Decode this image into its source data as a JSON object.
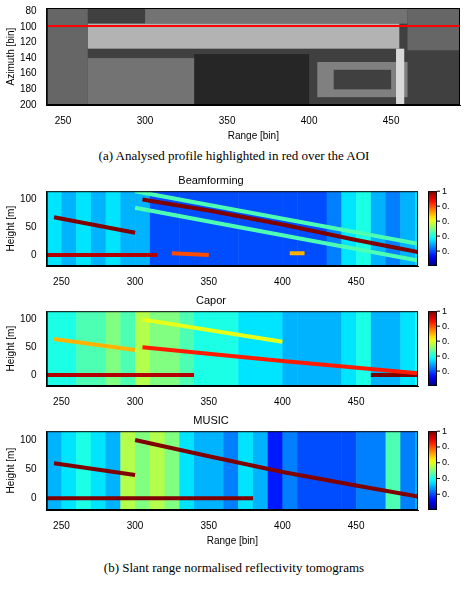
{
  "captions": {
    "a": "(a) Analysed profile highlighted in red over the AOI",
    "b": "(b) Slant range normalised reflectivity tomograms"
  },
  "chart_data": [
    {
      "type": "image",
      "x_label": "Range [bin]",
      "y_label": "Azimuth [bin]",
      "xlim": [
        240,
        492
      ],
      "xticks": [
        250,
        300,
        350,
        400,
        450
      ],
      "ylim": [
        200,
        76
      ],
      "yticks": [
        80,
        100,
        120,
        140,
        160,
        180,
        200
      ],
      "grid": false,
      "background": 0.25,
      "regions": [
        {
          "x": [
            300,
            460
          ],
          "y": [
            76,
            96
          ],
          "value": 0.45
        },
        {
          "x": [
            265,
            455
          ],
          "y": [
            96,
            128
          ],
          "value": 0.7
        },
        {
          "x": [
            240,
            265
          ],
          "y": [
            76,
            200
          ],
          "value": 0.4
        },
        {
          "x": [
            265,
            330
          ],
          "y": [
            140,
            200
          ],
          "value": 0.45
        },
        {
          "x": [
            330,
            400
          ],
          "y": [
            135,
            200
          ],
          "value": 0.15
        },
        {
          "x": [
            405,
            460
          ],
          "y": [
            145,
            190
          ],
          "value": 0.5
        },
        {
          "x": [
            415,
            450
          ],
          "y": [
            155,
            180
          ],
          "value": 0.25
        },
        {
          "x": [
            453,
            458
          ],
          "y": [
            128,
            200
          ],
          "value": 0.85
        },
        {
          "x": [
            460,
            492
          ],
          "y": [
            76,
            130
          ],
          "value": 0.4
        }
      ],
      "profile": {
        "y": 99,
        "color": "#ff0000"
      }
    },
    {
      "type": "heatmap",
      "title": "Beamforming",
      "y_label": "Height [m]",
      "xlim": [
        240,
        492
      ],
      "xticks": [
        250,
        300,
        350,
        400,
        450
      ],
      "ylim": [
        -20,
        115
      ],
      "yticks": [
        0,
        50,
        100
      ],
      "grid": false,
      "background": {
        "x": [
          240,
          250,
          260,
          270,
          280,
          290,
          300,
          310,
          320,
          330,
          340,
          350,
          360,
          370,
          380,
          390,
          400,
          410,
          420,
          430,
          440,
          450,
          460,
          470,
          480,
          490
        ],
        "values": [
          0.35,
          0.3,
          0.35,
          0.3,
          0.35,
          0.3,
          0.3,
          0.2,
          0.2,
          0.2,
          0.2,
          0.2,
          0.2,
          0.2,
          0.2,
          0.2,
          0.2,
          0.2,
          0.2,
          0.25,
          0.35,
          0.4,
          0.3,
          0.25,
          0.3,
          0.35
        ]
      },
      "ridges": [
        {
          "x": [
            300,
            492
          ],
          "y": [
            115,
            20
          ],
          "value": 0.45
        },
        {
          "x": [
            300,
            492
          ],
          "y": [
            85,
            -10
          ],
          "value": 0.45
        },
        {
          "x": [
            305,
            350,
            400,
            450,
            492
          ],
          "y": [
            100,
            80,
            55,
            27,
            5
          ],
          "value": 1
        },
        {
          "x": [
            245,
            300
          ],
          "y": [
            68,
            40
          ],
          "value": 1
        },
        {
          "x": [
            240,
            315
          ],
          "y": [
            0,
            0
          ],
          "value": 0.95
        },
        {
          "x": [
            325,
            350
          ],
          "y": [
            3,
            0
          ],
          "value": 0.8
        },
        {
          "x": [
            405,
            415
          ],
          "y": [
            3,
            3
          ],
          "value": 0.7
        }
      ],
      "colorbar": {
        "range": [
          0,
          1
        ],
        "ticks": [
          1,
          {
            "value": 0.8,
            "label": "0."
          },
          {
            "value": 0.6,
            "label": "0."
          },
          {
            "value": 0.4,
            "label": "0."
          },
          {
            "value": 0.2,
            "label": "0."
          }
        ]
      }
    },
    {
      "type": "heatmap",
      "title": "Capor",
      "y_label": "Height [m]",
      "xlim": [
        240,
        492
      ],
      "xticks": [
        250,
        300,
        350,
        400,
        450
      ],
      "ylim": [
        -20,
        115
      ],
      "yticks": [
        0,
        50,
        100
      ],
      "grid": false,
      "background": {
        "x": [
          240,
          250,
          260,
          270,
          280,
          290,
          300,
          310,
          320,
          330,
          340,
          350,
          360,
          370,
          380,
          390,
          400,
          410,
          420,
          430,
          440,
          450,
          460,
          470,
          480,
          490
        ],
        "values": [
          0.4,
          0.4,
          0.45,
          0.45,
          0.5,
          0.45,
          0.55,
          0.5,
          0.5,
          0.45,
          0.4,
          0.4,
          0.4,
          0.35,
          0.35,
          0.35,
          0.3,
          0.3,
          0.3,
          0.3,
          0.35,
          0.4,
          0.3,
          0.3,
          0.35,
          0.4
        ]
      },
      "ridges": [
        {
          "x": [
            305,
            400
          ],
          "y": [
            100,
            60
          ],
          "value": 0.6
        },
        {
          "x": [
            245,
            300
          ],
          "y": [
            65,
            45
          ],
          "value": 0.7
        },
        {
          "x": [
            305,
            400,
            492
          ],
          "y": [
            50,
            25,
            3
          ],
          "value": 0.85
        },
        {
          "x": [
            240,
            340
          ],
          "y": [
            0,
            0
          ],
          "value": 0.95
        },
        {
          "x": [
            460,
            492
          ],
          "y": [
            0,
            0
          ],
          "value": 1
        }
      ],
      "colorbar": {
        "range": [
          0,
          1
        ],
        "ticks": [
          1,
          {
            "value": 0.8,
            "label": "0."
          },
          {
            "value": 0.6,
            "label": "0."
          },
          {
            "value": 0.4,
            "label": "0."
          },
          {
            "value": 0.2,
            "label": "0."
          }
        ]
      }
    },
    {
      "type": "heatmap",
      "title": "MUSIC",
      "x_label": "Range [bin]",
      "y_label": "Height [m]",
      "xlim": [
        240,
        492
      ],
      "xticks": [
        250,
        300,
        350,
        400,
        450
      ],
      "ylim": [
        -20,
        115
      ],
      "yticks": [
        0,
        50,
        100
      ],
      "grid": false,
      "background": {
        "x": [
          240,
          250,
          260,
          270,
          280,
          290,
          300,
          310,
          320,
          330,
          340,
          350,
          360,
          370,
          380,
          390,
          400,
          410,
          420,
          430,
          440,
          450,
          460,
          470,
          480,
          490
        ],
        "values": [
          0.3,
          0.35,
          0.4,
          0.35,
          0.3,
          0.55,
          0.5,
          0.55,
          0.5,
          0.35,
          0.3,
          0.3,
          0.25,
          0.35,
          0.3,
          0.15,
          0.25,
          0.2,
          0.2,
          0.2,
          0.2,
          0.25,
          0.25,
          0.45,
          0.25,
          0.3
        ]
      },
      "ridges": [
        {
          "x": [
            300,
            350,
            400,
            450,
            492
          ],
          "y": [
            100,
            72,
            45,
            22,
            3
          ],
          "value": 1
        },
        {
          "x": [
            245,
            300
          ],
          "y": [
            60,
            40
          ],
          "value": 1
        },
        {
          "x": [
            240,
            380
          ],
          "y": [
            0,
            0
          ],
          "value": 1
        }
      ],
      "colorbar": {
        "range": [
          0,
          1
        ],
        "ticks": [
          1,
          {
            "value": 0.8,
            "label": "0."
          },
          {
            "value": 0.6,
            "label": "0."
          },
          {
            "value": 0.4,
            "label": "0."
          },
          {
            "value": 0.2,
            "label": "0."
          }
        ]
      }
    }
  ]
}
